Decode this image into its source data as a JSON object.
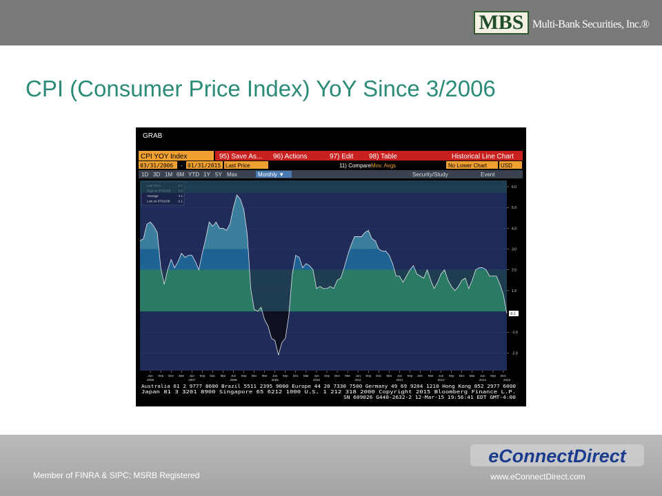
{
  "slide": {
    "logo_mark": "MBS",
    "logo_name": "Multi-Bank Securities, Inc.®",
    "title": "CPI (Consumer Price Index) YoY Since 3/2006",
    "footer_left": "Member of FINRA & SIPC; MSRB Registered",
    "footer_logo": "eConnectDirect",
    "footer_url": "www.eConnectDirect.com"
  },
  "terminal": {
    "header": "GRAB",
    "ticker": "CPI YOY Index",
    "menu": [
      "95) Save As...",
      "96) Actions",
      "97) Edit",
      "98) Table"
    ],
    "chart_kind": "Historical Line Chart",
    "start_date": "03/31/2006",
    "dash": "-",
    "end_date": "01/31/2015",
    "field": "Last Price",
    "compare": "11) Compare",
    "mov_avgs": "Mov. Avgs",
    "lower_chart": "No Lower Chart",
    "currency": "USD",
    "periods": [
      "1D",
      "3D",
      "1M",
      "6M",
      "YTD",
      "1Y",
      "5Y",
      "Max"
    ],
    "frequency": "Monthly ▼",
    "study": "Security/Study",
    "event": "Event",
    "legend": [
      {
        "label": "Last Price",
        "value": "-0.1"
      },
      {
        "label": "High on 07/31/08",
        "value": "5.6"
      },
      {
        "label": "Average",
        "value": "2.1"
      },
      {
        "label": "Low on 07/31/09",
        "value": "-2.1"
      }
    ],
    "footer": [
      "Australia 61 2 9777 8600 Brazil 5511 2395 9000 Europe 44 20 7330 7500 Germany 49 69 9204 1210 Hong Kong 852 2977 6000",
      "Japan 81 3 3201 8900       Singapore 65 6212 1000       U.S. 1 212 318 2000       Copyright 2015 Bloomberg Finance L.P.",
      "SN 609026 G440-2632-2 12-Mar-15 19:56:41 EDT  GMT-4:00"
    ]
  },
  "chart_data": {
    "type": "area",
    "values": [
      3.4,
      3.5,
      4.2,
      4.3,
      4.1,
      3.8,
      2.1,
      1.3,
      2.0,
      2.5,
      2.1,
      2.4,
      2.8,
      2.6,
      2.7,
      2.7,
      2.4,
      2.0,
      2.8,
      3.5,
      4.3,
      4.1,
      4.3,
      4.0,
      4.0,
      3.9,
      4.2,
      5.0,
      5.6,
      5.4,
      4.9,
      3.7,
      1.1,
      0.1,
      0.0,
      0.2,
      -0.4,
      -0.7,
      -1.3,
      -1.4,
      -2.1,
      -1.5,
      -1.3,
      -0.2,
      1.8,
      2.7,
      2.6,
      2.1,
      2.3,
      2.2,
      2.0,
      1.1,
      1.2,
      1.1,
      1.1,
      1.2,
      1.1,
      1.5,
      1.6,
      2.1,
      2.7,
      3.2,
      3.6,
      3.6,
      3.6,
      3.8,
      3.9,
      3.5,
      3.4,
      3.0,
      2.9,
      2.9,
      2.7,
      2.3,
      1.7,
      1.7,
      1.4,
      1.7,
      2.0,
      2.2,
      1.8,
      1.7,
      1.6,
      2.0,
      1.5,
      1.1,
      1.4,
      1.8,
      2.0,
      1.5,
      1.2,
      1.0,
      1.2,
      1.5,
      1.6,
      1.1,
      1.5,
      2.0,
      2.1,
      2.1,
      2.0,
      1.7,
      1.7,
      1.7,
      1.3,
      0.8,
      -0.1
    ],
    "month_labels": [
      "Jun",
      "Sep",
      "Dec",
      "Mar",
      "Jun",
      "Sep",
      "Dec",
      "Mar",
      "Jun",
      "Sep",
      "Dec",
      "Mar",
      "Jun",
      "Sep",
      "Dec",
      "Mar",
      "Jun",
      "Sep",
      "Dec",
      "Mar",
      "Jun",
      "Sep",
      "Dec",
      "Mar",
      "Jun",
      "Sep",
      "Dec",
      "Mar",
      "Jun",
      "Sep",
      "Dec",
      "Mar",
      "Jun",
      "Sep",
      "Dec"
    ],
    "year_labels": [
      "2006",
      "2007",
      "2008",
      "2009",
      "2010",
      "2011",
      "2012",
      "2013",
      "2014",
      "2015"
    ],
    "ylim": [
      -2.85,
      6.3
    ],
    "yticks": [
      {
        "value": 6,
        "label": "6.0"
      },
      {
        "value": 5,
        "label": "5.0"
      },
      {
        "value": 4,
        "label": "4.0"
      },
      {
        "value": 3,
        "label": "3.0"
      },
      {
        "value": 2,
        "label": "2.0"
      },
      {
        "value": 1,
        "label": "1.0"
      },
      {
        "value": -1,
        "label": "-1.0"
      },
      {
        "value": -2,
        "label": "-2.0"
      }
    ],
    "grid": true
  }
}
